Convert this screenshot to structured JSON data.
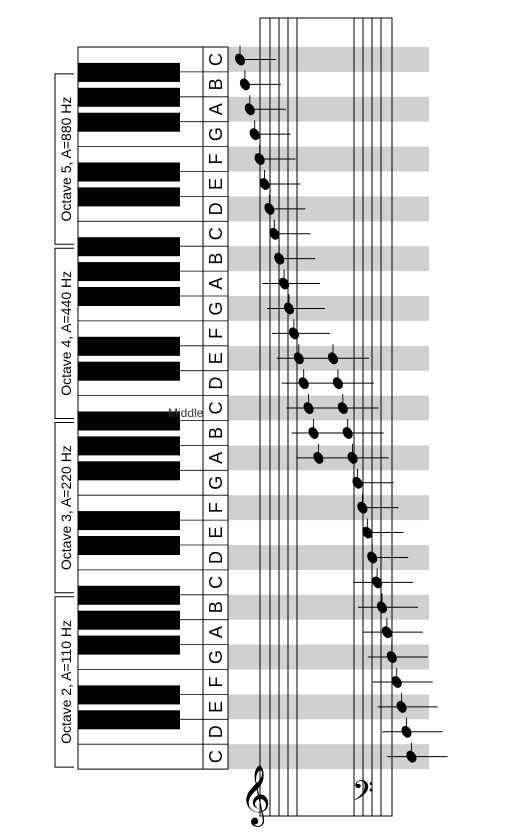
{
  "octaves": [
    {
      "label": "Octave 5, A=880 Hz"
    },
    {
      "label": "Octave 4, A=440 Hz"
    },
    {
      "label": "Octave 3, A=220 Hz"
    },
    {
      "label": "Octave 2, A=110 Hz"
    }
  ],
  "middle_label": "Middle",
  "note_names": [
    "C",
    "B",
    "A",
    "G",
    "F",
    "E",
    "D",
    "C",
    "B",
    "A",
    "G",
    "F",
    "E",
    "D",
    "C",
    "B",
    "A",
    "G",
    "F",
    "E",
    "D",
    "C",
    "B",
    "A",
    "G",
    "F",
    "E",
    "D",
    "C"
  ],
  "clefs": {
    "treble": "𝄞",
    "bass": "𝄢"
  },
  "colors": {
    "band": "#d0d0d0",
    "ink": "#000000"
  }
}
